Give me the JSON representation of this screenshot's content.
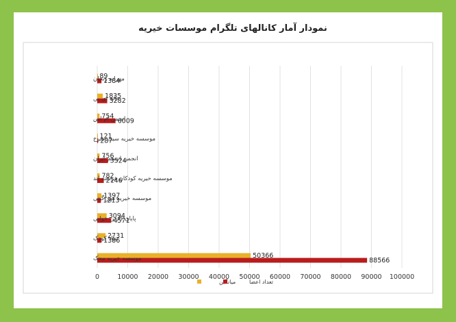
{
  "chart_data": {
    "type": "bar",
    "orientation": "horizontal",
    "title": "نمودار آمار کانالهای تلگرام موسسات خیریه",
    "categories": [
      "مهرانه زنجان",
      "خانه ای بی",
      "انجمن ام اس",
      "موسسه خیریه سیب سرخ",
      "انجمن اتیسم ایران",
      "موسسه خیریه کودکان فرشته اند",
      "موسسه خیریه مهر گیتی",
      "پایان کارتن خوابی",
      "بنیاد کودک",
      "موسسه خیریه محک"
    ],
    "series": [
      {
        "name": "میانگین",
        "color": "#e8b12a",
        "values": [
          89,
          1835,
          754,
          121,
          756,
          782,
          1397,
          3094,
          2731,
          50366
        ]
      },
      {
        "name": "تعداد اعضا",
        "color": "#b91c1c",
        "values": [
          1384,
          3282,
          6009,
          287,
          3524,
          2146,
          1213,
          4571,
          1386,
          88566
        ]
      }
    ],
    "xlim": [
      0,
      100000
    ],
    "xticks": [
      0,
      10000,
      20000,
      30000,
      40000,
      50000,
      60000,
      70000,
      80000,
      90000,
      100000
    ],
    "grid": true,
    "legend": "bottom"
  }
}
